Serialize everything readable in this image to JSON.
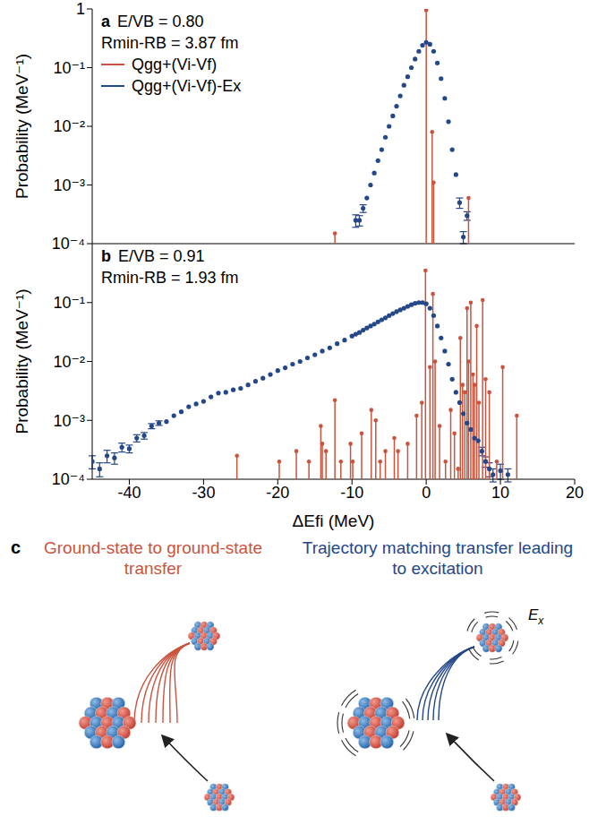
{
  "chart_data": [
    {
      "type": "scatter",
      "title": "a",
      "annotations": [
        "E/VB = 0.80",
        "Rmin-RB = 3.87 fm"
      ],
      "y_label": "Probability (MeV⁻¹)",
      "log": "y",
      "tick_labels": "y",
      "legend": "upper left",
      "xlim": [
        -45,
        20
      ],
      "xticks": [
        -40,
        -30,
        -20,
        -10,
        0,
        10,
        20
      ],
      "ylim": [
        0.0001,
        1
      ],
      "yticks": [
        {
          "value": 0.0001,
          "label": "10⁻⁴"
        },
        {
          "value": 0.001,
          "label": "10⁻³"
        },
        {
          "value": 0.01,
          "label": "10⁻²"
        },
        {
          "value": 0.1,
          "label": "10⁻¹"
        },
        1
      ],
      "series": [
        {
          "name": "Qgg+(Vi-Vf)",
          "color": "#c9543e",
          "type": "stem",
          "marker": "circle",
          "x": [
            -12.3,
            0,
            0.8,
            1,
            5.7
          ],
          "values": [
            0.00015,
            0.95,
            0.008,
            0.0011,
            0.0006
          ]
        },
        {
          "name": "Qgg+(Vi-Vf)-Ex",
          "color": "#24478a",
          "type": "scatter",
          "marker": "circle",
          "x": [
            -9.5,
            -9,
            -8.5,
            -8,
            -7.5,
            -7,
            -6.5,
            -6,
            -5.5,
            -5,
            -4.5,
            -4,
            -3.5,
            -3,
            -2.5,
            -2,
            -1.5,
            -1,
            -0.5,
            0,
            0.5,
            1,
            1.5,
            2,
            2.5,
            3,
            3.5,
            4,
            4.5,
            5,
            5.5
          ],
          "values": [
            0.00025,
            0.00025,
            0.0004,
            0.0006,
            0.001,
            0.0016,
            0.0026,
            0.004,
            0.0065,
            0.01,
            0.015,
            0.022,
            0.033,
            0.05,
            0.07,
            0.1,
            0.14,
            0.19,
            0.24,
            0.27,
            0.25,
            0.19,
            0.12,
            0.065,
            0.03,
            0.012,
            0.004,
            0.0015,
            0.0005,
            0.00013,
            0.0003
          ],
          "errors": [
            6e-05,
            5e-05,
            6e-05,
            null,
            null,
            null,
            null,
            null,
            null,
            null,
            null,
            null,
            null,
            null,
            null,
            null,
            null,
            null,
            null,
            null,
            null,
            null,
            null,
            null,
            null,
            null,
            null,
            null,
            0.0001,
            3e-05,
            5e-05
          ]
        }
      ]
    },
    {
      "type": "scatter",
      "title": "b",
      "annotations": [
        "E/VB = 0.91",
        "Rmin-RB = 1.93 fm"
      ],
      "y_label": "Probability (MeV⁻¹)",
      "x_label": "ΔEfi (MeV)",
      "log": "y",
      "xlim": [
        -45,
        20
      ],
      "xticks": [
        -40,
        -30,
        -20,
        -10,
        0,
        10,
        20
      ],
      "ylim": [
        0.0001,
        1
      ],
      "yticks": [
        {
          "value": 0.0001,
          "label": "10⁻⁴"
        },
        {
          "value": 0.001,
          "label": "10⁻³"
        },
        {
          "value": 0.01,
          "label": "10⁻²"
        },
        {
          "value": 0.1,
          "label": "10⁻¹"
        }
      ],
      "series": [
        {
          "name": "Qgg+(Vi-Vf)",
          "color": "#c9543e",
          "type": "stem",
          "marker": "circle",
          "x": [
            -25.5,
            -19.8,
            -17.5,
            -15.8,
            -14.2,
            -14.0,
            -13.5,
            -12.3,
            -11.5,
            -10.2,
            -9.9,
            -8.7,
            -7.4,
            -6.8,
            -6.2,
            -5.5,
            -4.3,
            -3.8,
            -2.5,
            -1.3,
            -0.6,
            -0.1,
            0.5,
            0.9,
            1.2,
            1.8,
            2.6,
            3.3,
            3.8,
            4.3,
            4.6,
            4.9,
            5.2,
            5.5,
            5.7,
            6.0,
            6.3,
            6.5,
            6.8,
            7.1,
            7.6,
            8.0,
            8.5,
            9.5,
            10.3,
            12.2
          ],
          "values": [
            0.00025,
            0.0002,
            0.0003,
            0.0002,
            0.0008,
            0.0004,
            0.0003,
            0.0022,
            0.0002,
            0.0004,
            0.0002,
            0.0006,
            0.0015,
            0.001,
            0.0002,
            0.0003,
            0.0005,
            0.0003,
            0.0004,
            0.0012,
            0.002,
            0.35,
            0.008,
            0.14,
            0.01,
            0.0008,
            0.0002,
            0.0015,
            0.0006,
            0.00015,
            0.025,
            0.004,
            0.003,
            0.08,
            0.01,
            0.1,
            0.006,
            0.004,
            0.04,
            0.002,
            0.11,
            0.005,
            0.003,
            0.0002,
            0.008,
            0.0012
          ]
        },
        {
          "name": "Qgg+(Vi-Vf)-Ex",
          "color": "#24478a",
          "type": "scatter",
          "marker": "circle",
          "x": [
            -45,
            -44,
            -43,
            -42,
            -41,
            -40,
            -39,
            -38,
            -37,
            -36,
            -35,
            -34,
            -33,
            -32,
            -31,
            -30,
            -29,
            -28,
            -27,
            -26,
            -25,
            -24,
            -23,
            -22,
            -21,
            -20,
            -19,
            -18,
            -17,
            -16,
            -15,
            -14,
            -13,
            -12,
            -11,
            -10,
            -9.5,
            -9,
            -8.5,
            -8,
            -7.5,
            -7,
            -6.5,
            -6,
            -5.5,
            -5,
            -4.5,
            -4,
            -3.5,
            -3,
            -2.5,
            -2,
            -1.5,
            -1,
            -0.5,
            0,
            0.5,
            1,
            1.5,
            2,
            2.5,
            3,
            3.5,
            4,
            4.5,
            5,
            5.5,
            6,
            6.5,
            7,
            7.5,
            8,
            8.5,
            9,
            10,
            11
          ],
          "values": [
            0.0002,
            0.00015,
            0.00025,
            0.00023,
            0.00035,
            0.00033,
            0.0005,
            0.00055,
            0.0008,
            0.0009,
            0.00095,
            0.0012,
            0.0014,
            0.0017,
            0.0019,
            0.0021,
            0.0025,
            0.0029,
            0.003,
            0.0033,
            0.0035,
            0.004,
            0.0046,
            0.0052,
            0.006,
            0.007,
            0.0078,
            0.009,
            0.01,
            0.0115,
            0.013,
            0.015,
            0.017,
            0.02,
            0.023,
            0.027,
            0.029,
            0.031,
            0.034,
            0.037,
            0.04,
            0.043,
            0.047,
            0.051,
            0.055,
            0.06,
            0.065,
            0.07,
            0.075,
            0.08,
            0.086,
            0.092,
            0.097,
            0.1,
            0.1,
            0.095,
            0.08,
            0.06,
            0.04,
            0.025,
            0.015,
            0.009,
            0.005,
            0.003,
            0.002,
            0.0013,
            0.0009,
            0.0007,
            0.0005,
            0.00045,
            0.0003,
            0.0002,
            0.00015,
            0.00012,
            0.00014,
            0.00012
          ],
          "errors": [
            5e-05,
            4e-05,
            6e-05,
            5e-05,
            6e-05,
            5e-05,
            7e-05,
            7e-05,
            8e-05,
            8e-05,
            null,
            null,
            null,
            null,
            null,
            null,
            null,
            null,
            null,
            null,
            null,
            null,
            null,
            null,
            null,
            null,
            null,
            null,
            null,
            null,
            null,
            null,
            null,
            null,
            null,
            null,
            null,
            null,
            null,
            null,
            null,
            null,
            null,
            null,
            null,
            null,
            null,
            null,
            null,
            null,
            null,
            null,
            null,
            null,
            null,
            null,
            null,
            null,
            null,
            null,
            null,
            null,
            null,
            null,
            null,
            null,
            null,
            null,
            null,
            null,
            5e-05,
            4e-05,
            4e-05,
            3e-05,
            4e-05,
            3e-05
          ]
        }
      ]
    }
  ],
  "diagram": {
    "panel": "c",
    "left_title": "Ground-state to ground-state transfer",
    "right_title": "Trajectory matching transfer leading to excitation",
    "excitation_label": {
      "main": "E",
      "sub": "x"
    }
  }
}
